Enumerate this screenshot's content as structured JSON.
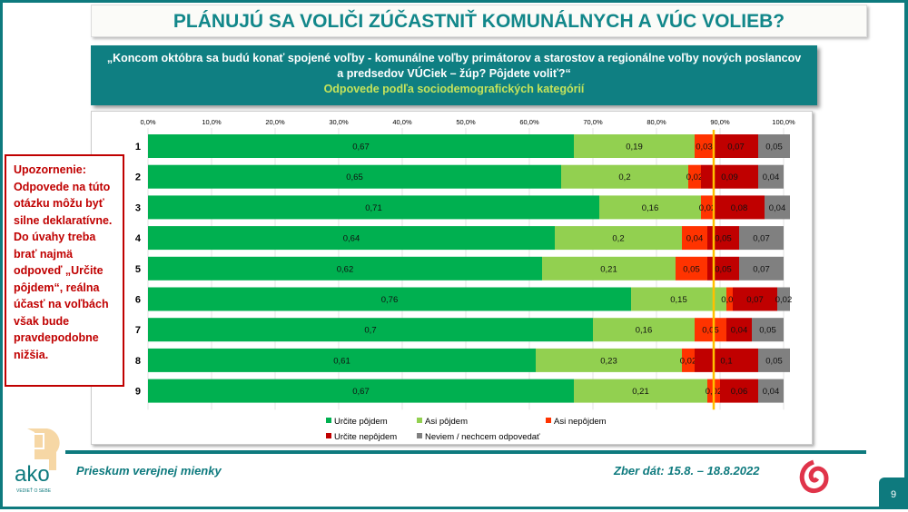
{
  "title": "PLÁNUJÚ SA VOLIČI ZÚČASTNIŤ KOMUNÁLNYCH A VÚC VOLIEB?",
  "question": {
    "line1": "„Koncom októbra sa budú konať spojené voľby - komunálne voľby primátorov a starostov a regionálne voľby nových poslancov",
    "line2": "a predsedov VÚCiek – žúp? Pôjdete voliť?“",
    "subtitle": "Odpovede podľa sociodemografických kategórií"
  },
  "warning": "Upozornenie: Odpovede na túto otázku môžu byť silne deklaratívne. Do úvahy treba brať najmä odpoveď „Určite pôjdem“, reálna účasť na voľbách však bude pravdepodobne nižšia.",
  "footer": {
    "left": "Prieskum verejnej mienky",
    "right": "Zber dát: 15.8. – 18.8.2022",
    "page": "9",
    "logo_text": "ako",
    "logo_tagline": "VEDIEŤ O SEBE"
  },
  "chart_data": {
    "type": "bar",
    "orientation": "horizontal",
    "stacked": true,
    "xlim": [
      0,
      1
    ],
    "xticks": [
      "0,0%",
      "10,0%",
      "20,0%",
      "30,0%",
      "40,0%",
      "50,0%",
      "60,0%",
      "70,0%",
      "80,0%",
      "90,0%",
      "100,0%"
    ],
    "categories": [
      "1",
      "2",
      "3",
      "4",
      "5",
      "6",
      "7",
      "8",
      "9"
    ],
    "reference_line": {
      "value": 0.89,
      "color": "#ffc000"
    },
    "legend_position": "bottom",
    "series": [
      {
        "name": "Určite pôjdem",
        "color": "#00b050",
        "values": [
          0.67,
          0.65,
          0.71,
          0.64,
          0.62,
          0.76,
          0.7,
          0.61,
          0.67
        ],
        "labels": [
          "0,67",
          "0,65",
          "0,71",
          "0,64",
          "0,62",
          "0,76",
          "0,7",
          "0,61",
          "0,67"
        ]
      },
      {
        "name": "Asi pôjdem",
        "color": "#92d050",
        "values": [
          0.19,
          0.2,
          0.16,
          0.2,
          0.21,
          0.15,
          0.16,
          0.23,
          0.21
        ],
        "labels": [
          "0,19",
          "0,2",
          "0,16",
          "0,2",
          "0,21",
          "0,15",
          "0,16",
          "0,23",
          "0,21"
        ]
      },
      {
        "name": "Asi nepôjdem",
        "color": "#ff3300",
        "values": [
          0.03,
          0.02,
          0.02,
          0.04,
          0.05,
          0.01,
          0.05,
          0.02,
          0.02
        ],
        "labels": [
          "0,03",
          "0,02",
          "0,02",
          "0,04",
          "0,05",
          "0,01",
          "0,05",
          "0,02",
          "0,02"
        ]
      },
      {
        "name": "Určite nepôjdem",
        "color": "#c00000",
        "values": [
          0.07,
          0.09,
          0.08,
          0.05,
          0.05,
          0.07,
          0.04,
          0.1,
          0.06
        ],
        "labels": [
          "0,07",
          "0,09",
          "0,08",
          "0,05",
          "0,05",
          "0,07",
          "0,04",
          "0,1",
          "0,06"
        ]
      },
      {
        "name": "Neviem / nechcem odpovedať",
        "color": "#808080",
        "values": [
          0.05,
          0.04,
          0.04,
          0.07,
          0.07,
          0.02,
          0.05,
          0.05,
          0.04
        ],
        "labels": [
          "0,05",
          "0,04",
          "0,04",
          "0,07",
          "0,07",
          "0,02",
          "0,05",
          "0,05",
          "0,04"
        ]
      }
    ]
  }
}
